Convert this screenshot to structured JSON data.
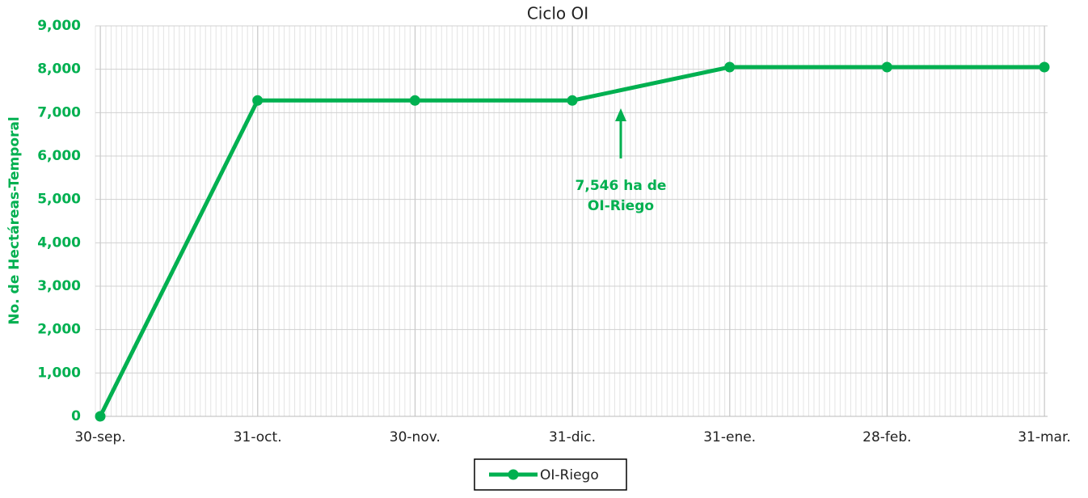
{
  "chart_data": {
    "type": "line",
    "title": "Ciclo OI",
    "y_label": "No. de Hectáreas-Temporal",
    "categories": [
      "30-sep.",
      "31-oct.",
      "30-nov.",
      "31-dic.",
      "31-ene.",
      "28-feb.",
      "31-mar."
    ],
    "series": [
      {
        "name": "OI-Riego",
        "color": "#00b050",
        "values": [
          0,
          7280,
          7280,
          7280,
          8050,
          8050,
          8050
        ]
      }
    ],
    "ylim": [
      0,
      9000
    ],
    "yticks": [
      0,
      {
        "value": 1000,
        "label": "1,000"
      },
      {
        "value": 2000,
        "label": "2,000"
      },
      {
        "value": 3000,
        "label": "3,000"
      },
      {
        "value": 4000,
        "label": "4,000"
      },
      {
        "value": 5000,
        "label": "5,000"
      },
      {
        "value": 6000,
        "label": "6,000"
      },
      {
        "value": 7000,
        "label": "7,000"
      },
      {
        "value": 8000,
        "label": "8,000"
      },
      {
        "value": 9000,
        "label": "9,000"
      }
    ],
    "grid": true,
    "minor_grid": true,
    "legend": "bottom",
    "annotation": {
      "lines": [
        "7,546 ha de",
        "OI-Riego"
      ],
      "color": "#00b050"
    }
  }
}
